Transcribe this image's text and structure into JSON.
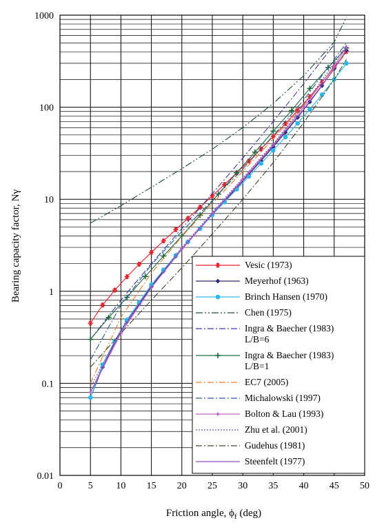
{
  "chart_data": {
    "type": "line",
    "xlabel": "Friction angle, ϕ",
    "xlabel_sub": "f",
    "xlabel_unit": " (deg)",
    "ylabel": "Bearing capacity factor, Nγ",
    "xlim": [
      0,
      50
    ],
    "ylim": [
      0.01,
      1000
    ],
    "yscale": "log",
    "grid": true,
    "legend_position": "bottom-right",
    "x_ticks": [
      "0",
      "5",
      "10",
      "15",
      "20",
      "25",
      "30",
      "35",
      "40",
      "45",
      "50"
    ],
    "y_ticks": [
      "0.01",
      "0.1",
      "1",
      "10",
      "100",
      "1000"
    ],
    "series": [
      {
        "name": "Vesic (1973)",
        "color": "#e8202a",
        "style": "solid",
        "marker": "star",
        "x": [
          5,
          7,
          9,
          11,
          13,
          15,
          17,
          19,
          21,
          23,
          25,
          27,
          29,
          31,
          33,
          35,
          37,
          39,
          41,
          43,
          45,
          47
        ],
        "y": [
          0.45,
          0.71,
          1.03,
          1.44,
          1.97,
          2.65,
          3.53,
          4.68,
          6.2,
          8.2,
          10.88,
          14.47,
          19.34,
          25.99,
          35.19,
          48.03,
          66.19,
          92.25,
          130.2,
          186.5,
          271.8,
          403.7
        ]
      },
      {
        "name": "Meyerhof (1963)",
        "color": "#2a2a7a",
        "style": "solid",
        "marker": "diamond",
        "x": [
          5,
          7,
          9,
          11,
          13,
          15,
          17,
          19,
          21,
          23,
          25,
          27,
          29,
          31,
          33,
          35,
          37,
          39,
          41,
          43,
          45,
          47
        ],
        "y": [
          0.07,
          0.15,
          0.28,
          0.47,
          0.73,
          1.13,
          1.66,
          2.4,
          3.42,
          4.82,
          6.77,
          9.46,
          13.24,
          18.56,
          26.17,
          37.15,
          53.27,
          77.33,
          113.98,
          171.14,
          262.74,
          414.3
        ]
      },
      {
        "name": "Brinch Hansen (1970)",
        "color": "#2ab8ec",
        "style": "solid",
        "marker": "circle",
        "x": [
          5,
          7,
          9,
          11,
          13,
          15,
          17,
          19,
          21,
          23,
          25,
          27,
          29,
          31,
          33,
          35,
          37,
          39,
          41,
          43,
          45,
          47
        ],
        "y": [
          0.07,
          0.16,
          0.29,
          0.49,
          0.76,
          1.18,
          1.71,
          2.46,
          3.45,
          4.79,
          6.76,
          9.32,
          12.84,
          17.69,
          24.44,
          33.92,
          47.38,
          66.75,
          95.05,
          136.88,
          200.81,
          299.52
        ]
      },
      {
        "name": "Chen (1975)",
        "color": "#1b4d3a",
        "style": "dash-dot-dot",
        "marker": "none",
        "x": [
          5,
          10,
          15,
          20,
          25,
          30,
          35,
          40,
          45,
          47
        ],
        "y": [
          5.5,
          8.5,
          13.5,
          21.5,
          35,
          60,
          110,
          220,
          510,
          950
        ]
      },
      {
        "name": "Ingra & Baecher (1983)\nL/B=6",
        "color": "#3a3aaa",
        "style": "dash-dot",
        "marker": "none",
        "x": [
          5,
          10,
          15,
          20,
          25,
          30,
          35,
          40,
          45
        ],
        "y": [
          0.3,
          0.8,
          2.0,
          4.8,
          11.5,
          28,
          70,
          180,
          480
        ]
      },
      {
        "name": "Ingra & Baecher (1983)\nL/B=1",
        "color": "#1a6a3a",
        "style": "solid",
        "marker": "plus",
        "x": [
          5,
          8,
          11,
          14,
          17,
          20,
          23,
          26,
          29,
          32,
          35,
          38,
          41,
          44,
          47
        ],
        "y": [
          0.3,
          0.52,
          0.86,
          1.45,
          2.42,
          4.0,
          6.7,
          11.4,
          19.4,
          32.5,
          55,
          92,
          160,
          270,
          440
        ]
      },
      {
        "name": "EC7 (2005)",
        "color": "#f07a2a",
        "style": "dash-dot",
        "marker": "none",
        "x": [
          5,
          10,
          15,
          20,
          25,
          30,
          35,
          40,
          45,
          47
        ],
        "y": [
          0.1,
          0.52,
          1.58,
          3.93,
          9.01,
          20.09,
          45.23,
          106.05,
          267.74,
          390
        ]
      },
      {
        "name": "Michalowski (1997)",
        "color": "#2a5a9a",
        "style": "dash-dot",
        "marker": "none",
        "x": [
          5,
          10,
          15,
          20,
          25,
          30,
          35,
          40,
          45,
          47
        ],
        "y": [
          0.18,
          0.71,
          1.94,
          4.47,
          9.7,
          21.4,
          49.1,
          120,
          330,
          500
        ]
      },
      {
        "name": "Bolton & Lau (1993)",
        "color": "#c060c0",
        "style": "solid",
        "marker": "plus-small",
        "x": [
          5,
          10,
          15,
          20,
          25,
          30,
          35,
          40,
          45,
          47
        ],
        "y": [
          0.08,
          0.35,
          1.1,
          2.9,
          7.0,
          16.5,
          39,
          100,
          280,
          450
        ]
      },
      {
        "name": "Zhu et al. (2001)",
        "color": "#5a5aaa",
        "style": "dotted",
        "marker": "none",
        "x": [
          5,
          10,
          15,
          20,
          25,
          30,
          35,
          40,
          45,
          47
        ],
        "y": [
          0.09,
          0.38,
          1.15,
          3.0,
          7.2,
          17,
          40,
          105,
          300,
          470
        ]
      },
      {
        "name": "Gudehus (1981)",
        "color": "#3a4a2a",
        "style": "dash-dot",
        "marker": "none",
        "x": [
          5,
          10,
          15,
          20,
          25,
          30,
          35,
          40,
          45,
          47
        ],
        "y": [
          0.15,
          0.35,
          0.8,
          1.8,
          4.2,
          10,
          25,
          68,
          200,
          330
        ]
      },
      {
        "name": "Steenfelt (1977)",
        "color": "#9a4ac0",
        "style": "solid",
        "marker": "none",
        "x": [
          5,
          10,
          15,
          20,
          25,
          30,
          35,
          40,
          45,
          47
        ],
        "y": [
          0.08,
          0.37,
          1.1,
          2.85,
          6.9,
          16,
          38,
          95,
          260,
          420
        ]
      }
    ]
  }
}
